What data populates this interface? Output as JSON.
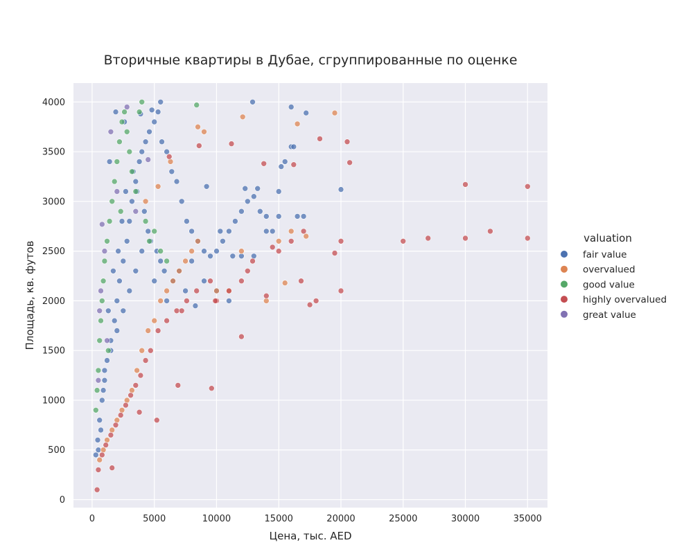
{
  "chart_data": {
    "type": "scatter",
    "title": "Вторичные квартиры в Дубае, сгруппированные по оценке",
    "xlabel": "Цена, тыс. AED",
    "ylabel": "Площадь, кв. футов",
    "xlim": [
      -1500,
      36600
    ],
    "ylim": [
      -80,
      4190
    ],
    "xticks": [
      0,
      5000,
      10000,
      15000,
      20000,
      25000,
      30000,
      35000
    ],
    "yticks": [
      0,
      500,
      1000,
      1500,
      2000,
      2500,
      3000,
      3500,
      4000
    ],
    "grid": true,
    "legend": {
      "title": "valuation",
      "placement": "right",
      "entries": [
        "fair value",
        "overvalued",
        "good value",
        "highly overvalued",
        "great value"
      ]
    },
    "colors": {
      "fair value": "#4c72b0",
      "overvalued": "#dd8452",
      "good value": "#55a868",
      "highly overvalued": "#c44e52",
      "great value": "#8172b3",
      "plot_background": "#eaeaf2",
      "grid": "#ffffff"
    },
    "series": [
      {
        "name": "fair value",
        "x": [
          300,
          450,
          600,
          800,
          1000,
          1200,
          1500,
          1800,
          2000,
          2200,
          2500,
          2800,
          3000,
          3200,
          3500,
          3800,
          4000,
          4300,
          4600,
          5000,
          5300,
          5600,
          6000,
          6400,
          6800,
          7200,
          7600,
          8000,
          8500,
          9000,
          9500,
          10000,
          10500,
          11000,
          11500,
          12000,
          12500,
          13000,
          13500,
          14000,
          14500,
          15000,
          15500,
          16000,
          16500,
          17000,
          20000,
          1000,
          1500,
          2000,
          2500,
          3000,
          3500,
          4000,
          4500,
          5000,
          5500,
          6000,
          7000,
          8000,
          9000,
          10000,
          11000,
          12000,
          13000,
          14000,
          15000,
          16000,
          17200,
          12900,
          5500,
          4800,
          3900,
          2600,
          1900,
          1400,
          700,
          500,
          900,
          1300,
          1700,
          2100,
          2400,
          2700,
          3300,
          3600,
          4200,
          4700,
          5200,
          5800,
          6500,
          7500,
          8300,
          9200,
          10300,
          11300,
          12300,
          13300,
          15200,
          16200
        ],
        "y": [
          450,
          600,
          800,
          1000,
          1200,
          1400,
          1600,
          1800,
          2000,
          2200,
          2400,
          2600,
          2800,
          3000,
          3200,
          3400,
          3500,
          3600,
          3700,
          3800,
          3900,
          3600,
          3500,
          3300,
          3200,
          3000,
          2800,
          2700,
          2600,
          2500,
          2450,
          2500,
          2600,
          2700,
          2800,
          2900,
          3000,
          3050,
          2900,
          2850,
          2700,
          3100,
          3400,
          3550,
          2850,
          2850,
          3120,
          1300,
          1500,
          1700,
          1900,
          2100,
          2300,
          2500,
          2700,
          2200,
          2400,
          2000,
          2300,
          2400,
          2200,
          2100,
          2000,
          2450,
          2450,
          2700,
          2850,
          3950,
          3890,
          4000,
          4000,
          3920,
          3880,
          3800,
          3900,
          3400,
          700,
          500,
          1100,
          1900,
          2300,
          2500,
          2800,
          3100,
          3300,
          3100,
          2900,
          2600,
          2500,
          2300,
          2200,
          2100,
          1950,
          3150,
          2700,
          2450,
          3130,
          3130,
          3350,
          3550
        ]
      },
      {
        "name": "overvalued",
        "x": [
          600,
          900,
          1200,
          1600,
          2000,
          2400,
          2800,
          3200,
          3600,
          4000,
          4500,
          5000,
          5500,
          6000,
          6500,
          7000,
          7500,
          8000,
          8500,
          9000,
          10000,
          11000,
          12000,
          14000,
          15000,
          15500,
          16000,
          16500,
          17200,
          19500,
          12100,
          8500,
          6300,
          5300,
          4300
        ],
        "y": [
          400,
          500,
          600,
          700,
          800,
          900,
          1000,
          1100,
          1300,
          1500,
          1700,
          1800,
          2000,
          2100,
          2200,
          2300,
          2400,
          2500,
          2600,
          3700,
          2100,
          2100,
          2500,
          2000,
          2600,
          2180,
          2700,
          3780,
          2650,
          3890,
          3850,
          3750,
          3400,
          3150,
          3000
        ]
      },
      {
        "name": "good value",
        "x": [
          300,
          400,
          500,
          600,
          700,
          800,
          900,
          1000,
          1200,
          1400,
          1600,
          1800,
          2000,
          2200,
          2400,
          2600,
          2800,
          3000,
          3200,
          3500,
          3800,
          4000,
          4300,
          4600,
          5000,
          5500,
          6000,
          8400,
          1300,
          2300
        ],
        "y": [
          900,
          1100,
          1300,
          1600,
          1800,
          2000,
          2200,
          2400,
          2600,
          2800,
          3000,
          3200,
          3400,
          3600,
          3800,
          3900,
          3700,
          3500,
          3300,
          3100,
          3900,
          4000,
          2800,
          2600,
          2700,
          2500,
          2400,
          3970,
          1500,
          2900
        ]
      },
      {
        "name": "highly overvalued",
        "x": [
          500,
          800,
          1100,
          1500,
          1900,
          2300,
          2700,
          3100,
          3500,
          3900,
          4300,
          4700,
          5300,
          6000,
          6800,
          7600,
          8400,
          9500,
          10000,
          11000,
          12000,
          12900,
          14000,
          15000,
          16000,
          17000,
          18000,
          19500,
          20000,
          20500,
          25000,
          27000,
          30000,
          32000,
          35000,
          35000,
          30000,
          20000,
          17500,
          14500,
          12000,
          9600,
          6900,
          5200,
          400,
          1600,
          3800,
          8600,
          11200,
          13800,
          16200,
          18300,
          20700,
          9900,
          7200,
          6200,
          16800,
          12500
        ],
        "y": [
          300,
          450,
          550,
          650,
          750,
          850,
          950,
          1050,
          1150,
          1250,
          1400,
          1500,
          1700,
          1800,
          1900,
          2000,
          2100,
          2200,
          2000,
          2100,
          2200,
          2400,
          2050,
          2500,
          2600,
          2700,
          2000,
          2480,
          2600,
          3600,
          2600,
          2630,
          2630,
          2700,
          2630,
          3150,
          3170,
          2100,
          1960,
          2540,
          1640,
          1120,
          1150,
          800,
          100,
          320,
          880,
          3560,
          3580,
          3380,
          3370,
          3630,
          3390,
          2000,
          1900,
          3450,
          2200,
          2300
        ]
      },
      {
        "name": "great value",
        "x": [
          500,
          600,
          700,
          800,
          1000,
          1500,
          2000,
          2800,
          3500,
          4500,
          1200
        ],
        "y": [
          1200,
          1900,
          2100,
          2770,
          2500,
          3700,
          3100,
          3950,
          2900,
          3420,
          1600
        ]
      }
    ]
  }
}
